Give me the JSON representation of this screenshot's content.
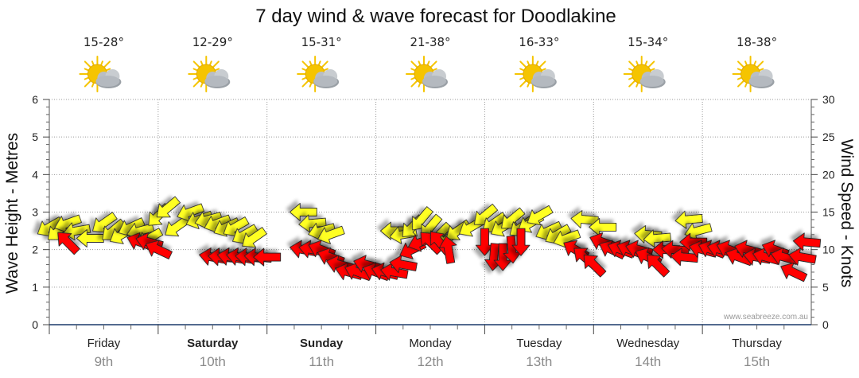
{
  "colors": {
    "wave_arrow": "#ffff22",
    "wind_arrow": "#ff0000",
    "grid": "#9a9a9a",
    "baseline": "#1a3a6a",
    "sun": "#f5c400",
    "cloud": "#b9bec4"
  },
  "chart_data": {
    "type": "scatter",
    "title": "7 day wind & wave forecast for Doodlakine",
    "ylabel_left": "Wave Height - Metres",
    "ylabel_right": "Wind Speed - Knots",
    "ylim_left": [
      0,
      6
    ],
    "ylim_right": [
      0,
      30
    ],
    "yticks_left": [
      "0",
      "1",
      "2",
      "3",
      "4",
      "5",
      "6"
    ],
    "yticks_right": [
      "0",
      "5",
      "10",
      "15",
      "20",
      "25",
      "30"
    ],
    "xlim_hours": [
      0,
      168
    ],
    "grid": true,
    "credit": "www.seabreeze.com.au",
    "days": [
      {
        "name": "Friday",
        "date": "9th",
        "temp": "15-28°",
        "icon": "partly-cloudy-icon",
        "bold": false
      },
      {
        "name": "Saturday",
        "date": "10th",
        "temp": "12-29°",
        "icon": "partly-cloudy-icon",
        "bold": true
      },
      {
        "name": "Sunday",
        "date": "11th",
        "temp": "15-31°",
        "icon": "partly-cloudy-icon",
        "bold": true
      },
      {
        "name": "Monday",
        "date": "12th",
        "temp": "21-38°",
        "icon": "partly-cloudy-icon",
        "bold": false
      },
      {
        "name": "Tuesday",
        "date": "13th",
        "temp": "16-33°",
        "icon": "partly-cloudy-icon",
        "bold": false
      },
      {
        "name": "Wednesday",
        "date": "14th",
        "temp": "15-34°",
        "icon": "partly-cloudy-icon",
        "bold": false
      },
      {
        "name": "Thursday",
        "date": "15th",
        "temp": "18-38°",
        "icon": "partly-cloudy-icon",
        "bold": false
      }
    ],
    "series": [
      {
        "name": "Wave height (m)",
        "axis": "left",
        "marker": "yellow-arrow",
        "points": [
          {
            "t": 0,
            "v": 2.6,
            "dir": 150
          },
          {
            "t": 2,
            "v": 2.5,
            "dir": 140
          },
          {
            "t": 4,
            "v": 2.7,
            "dir": 160
          },
          {
            "t": 6,
            "v": 2.5,
            "dir": 170
          },
          {
            "t": 9,
            "v": 2.3,
            "dir": 180
          },
          {
            "t": 12,
            "v": 2.7,
            "dir": 145
          },
          {
            "t": 14,
            "v": 2.5,
            "dir": 140
          },
          {
            "t": 16,
            "v": 2.4,
            "dir": 150
          },
          {
            "t": 18,
            "v": 2.6,
            "dir": 155
          },
          {
            "t": 20,
            "v": 2.5,
            "dir": 165
          },
          {
            "t": 22,
            "v": 2.3,
            "dir": 150
          },
          {
            "t": 24,
            "v": 2.9,
            "dir": 135
          },
          {
            "t": 26,
            "v": 3.1,
            "dir": 140
          },
          {
            "t": 28,
            "v": 2.6,
            "dir": 145
          },
          {
            "t": 31,
            "v": 3.0,
            "dir": 160
          },
          {
            "t": 33,
            "v": 2.8,
            "dir": 160
          },
          {
            "t": 35,
            "v": 2.8,
            "dir": 165
          },
          {
            "t": 37,
            "v": 2.7,
            "dir": 160
          },
          {
            "t": 39,
            "v": 2.6,
            "dir": 155
          },
          {
            "t": 41,
            "v": 2.6,
            "dir": 150
          },
          {
            "t": 43,
            "v": 2.4,
            "dir": 150
          },
          {
            "t": 45,
            "v": 2.3,
            "dir": 145
          },
          {
            "t": 56,
            "v": 3.0,
            "dir": 180
          },
          {
            "t": 58,
            "v": 2.7,
            "dir": 175
          },
          {
            "t": 60,
            "v": 2.5,
            "dir": 165
          },
          {
            "t": 62,
            "v": 2.4,
            "dir": 160
          },
          {
            "t": 76,
            "v": 2.5,
            "dir": 180
          },
          {
            "t": 78,
            "v": 2.4,
            "dir": 170
          },
          {
            "t": 80,
            "v": 2.6,
            "dir": 135
          },
          {
            "t": 82,
            "v": 2.8,
            "dir": 130
          },
          {
            "t": 84,
            "v": 2.6,
            "dir": 130
          },
          {
            "t": 86,
            "v": 2.4,
            "dir": 135
          },
          {
            "t": 88,
            "v": 2.3,
            "dir": 140
          },
          {
            "t": 90,
            "v": 2.5,
            "dir": 145
          },
          {
            "t": 93,
            "v": 2.6,
            "dir": 150
          },
          {
            "t": 96,
            "v": 2.9,
            "dir": 140
          },
          {
            "t": 98,
            "v": 2.7,
            "dir": 145
          },
          {
            "t": 100,
            "v": 2.6,
            "dir": 150
          },
          {
            "t": 102,
            "v": 2.8,
            "dir": 140
          },
          {
            "t": 104,
            "v": 2.6,
            "dir": 145
          },
          {
            "t": 106,
            "v": 2.7,
            "dir": 150
          },
          {
            "t": 108,
            "v": 2.9,
            "dir": 150
          },
          {
            "t": 110,
            "v": 2.5,
            "dir": 155
          },
          {
            "t": 112,
            "v": 2.4,
            "dir": 150
          },
          {
            "t": 114,
            "v": 2.3,
            "dir": 160
          },
          {
            "t": 118,
            "v": 2.8,
            "dir": 185
          },
          {
            "t": 122,
            "v": 2.6,
            "dir": 180
          },
          {
            "t": 132,
            "v": 2.4,
            "dir": 185
          },
          {
            "t": 134,
            "v": 2.3,
            "dir": 175
          },
          {
            "t": 141,
            "v": 2.8,
            "dir": 175
          },
          {
            "t": 143,
            "v": 2.5,
            "dir": 165
          }
        ]
      },
      {
        "name": "Wind speed (knots)",
        "axis": "right",
        "marker": "red-arrow",
        "points": [
          {
            "t": 4,
            "v": 11,
            "dir": 225
          },
          {
            "t": 20,
            "v": 11,
            "dir": 200
          },
          {
            "t": 22,
            "v": 11,
            "dir": 195
          },
          {
            "t": 24,
            "v": 10,
            "dir": 205
          },
          {
            "t": 36,
            "v": 9,
            "dir": 190
          },
          {
            "t": 38,
            "v": 9,
            "dir": 185
          },
          {
            "t": 40,
            "v": 9,
            "dir": 190
          },
          {
            "t": 42,
            "v": 9,
            "dir": 190
          },
          {
            "t": 44,
            "v": 9,
            "dir": 185
          },
          {
            "t": 46,
            "v": 9,
            "dir": 185
          },
          {
            "t": 48,
            "v": 9,
            "dir": 180
          },
          {
            "t": 56,
            "v": 10,
            "dir": 190
          },
          {
            "t": 58,
            "v": 10,
            "dir": 190
          },
          {
            "t": 60,
            "v": 10,
            "dir": 200
          },
          {
            "t": 62,
            "v": 9,
            "dir": 200
          },
          {
            "t": 64,
            "v": 8,
            "dir": 195
          },
          {
            "t": 66,
            "v": 7,
            "dir": 195
          },
          {
            "t": 68,
            "v": 7,
            "dir": 200
          },
          {
            "t": 70,
            "v": 8,
            "dir": 195
          },
          {
            "t": 72,
            "v": 7,
            "dir": 200
          },
          {
            "t": 74,
            "v": 7,
            "dir": 195
          },
          {
            "t": 76,
            "v": 7,
            "dir": 190
          },
          {
            "t": 78,
            "v": 8,
            "dir": 190
          },
          {
            "t": 80,
            "v": 10,
            "dir": 155
          },
          {
            "t": 82,
            "v": 11,
            "dir": 160
          },
          {
            "t": 84,
            "v": 11,
            "dir": 225
          },
          {
            "t": 86,
            "v": 11,
            "dir": 230
          },
          {
            "t": 88,
            "v": 10,
            "dir": 260
          },
          {
            "t": 96,
            "v": 11,
            "dir": 90
          },
          {
            "t": 98,
            "v": 9,
            "dir": 95
          },
          {
            "t": 100,
            "v": 9,
            "dir": 90
          },
          {
            "t": 102,
            "v": 10,
            "dir": 85
          },
          {
            "t": 104,
            "v": 11,
            "dir": 90
          },
          {
            "t": 116,
            "v": 10,
            "dir": 210
          },
          {
            "t": 118,
            "v": 9,
            "dir": 220
          },
          {
            "t": 120,
            "v": 8,
            "dir": 225
          },
          {
            "t": 122,
            "v": 11,
            "dir": 200
          },
          {
            "t": 124,
            "v": 10,
            "dir": 205
          },
          {
            "t": 126,
            "v": 10,
            "dir": 200
          },
          {
            "t": 128,
            "v": 10,
            "dir": 200
          },
          {
            "t": 130,
            "v": 10,
            "dir": 195
          },
          {
            "t": 132,
            "v": 9,
            "dir": 205
          },
          {
            "t": 134,
            "v": 8,
            "dir": 225
          },
          {
            "t": 136,
            "v": 10,
            "dir": 180
          },
          {
            "t": 138,
            "v": 10,
            "dir": 185
          },
          {
            "t": 140,
            "v": 9,
            "dir": 185
          },
          {
            "t": 142,
            "v": 11,
            "dir": 180
          },
          {
            "t": 144,
            "v": 10,
            "dir": 195
          },
          {
            "t": 146,
            "v": 10,
            "dir": 200
          },
          {
            "t": 148,
            "v": 10,
            "dir": 195
          },
          {
            "t": 150,
            "v": 10,
            "dir": 200
          },
          {
            "t": 152,
            "v": 9,
            "dir": 200
          },
          {
            "t": 154,
            "v": 10,
            "dir": 195
          },
          {
            "t": 156,
            "v": 9,
            "dir": 190
          },
          {
            "t": 158,
            "v": 9,
            "dir": 195
          },
          {
            "t": 160,
            "v": 10,
            "dir": 200
          },
          {
            "t": 162,
            "v": 9,
            "dir": 195
          },
          {
            "t": 164,
            "v": 7,
            "dir": 205
          },
          {
            "t": 166,
            "v": 9,
            "dir": 190
          },
          {
            "t": 167,
            "v": 11,
            "dir": 185
          }
        ]
      }
    ]
  }
}
